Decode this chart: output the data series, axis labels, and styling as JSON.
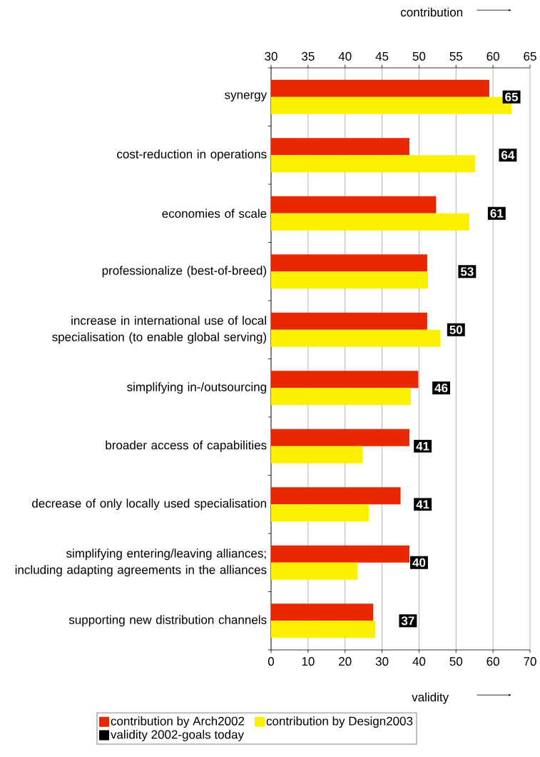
{
  "chart_data": {
    "type": "bar",
    "orientation": "horizontal",
    "categories": [
      "synergy",
      "cost-reduction in operations",
      "economies of scale",
      "professionalize (best-of-breed)",
      "increase in international use of local specialisation (to enable global serving)",
      "simplifying in-/outsourcing",
      "broader access of capabilities",
      "decrease of only locally used specialisation",
      "simplifying entering/leaving alliances; including adapting agreements in the alliances",
      "supporting new distribution channels"
    ],
    "series": [
      {
        "name": "contribution by Arch2002",
        "color": "#e82800",
        "axis": "x2",
        "values": [
          59.5,
          48.7,
          52.3,
          51.1,
          51.1,
          49.9,
          48.7,
          47.5,
          48.7,
          43.8
        ]
      },
      {
        "name": "contribution by Design2003",
        "color": "#fbf000",
        "axis": "x2",
        "values": [
          62.5,
          57.6,
          56.8,
          51.2,
          52.9,
          48.9,
          42.4,
          43.2,
          41.7,
          44.1
        ]
      },
      {
        "name": "validity 2002-goals today",
        "color": "#000000",
        "type": "scatter",
        "values": [
          65,
          64,
          61,
          53,
          50,
          46,
          41,
          41,
          40,
          37
        ],
        "value_labels": [
          "65",
          "64",
          "61",
          "53",
          "50",
          "46",
          "41",
          "41",
          "40",
          "37"
        ]
      }
    ],
    "xlabel": "validity",
    "x2label": "contribution",
    "xlim": [
      0,
      70
    ],
    "xticks": [
      0,
      10,
      20,
      30,
      40,
      50,
      60,
      70
    ],
    "x2lim": [
      30,
      65
    ],
    "x2ticks": [
      30,
      35,
      40,
      45,
      50,
      55,
      60,
      65
    ],
    "grid": "x",
    "legend": "bottom"
  }
}
